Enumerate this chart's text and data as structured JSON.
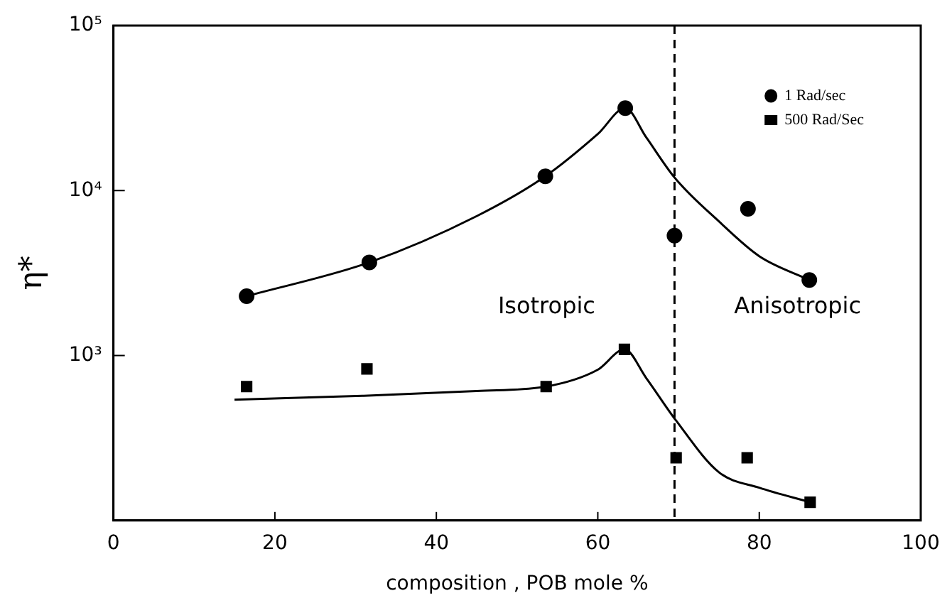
{
  "chart_data": {
    "type": "scatter",
    "xlabel": "composition , POB mole %",
    "ylabel": "η*",
    "log": "y",
    "grid": false,
    "legend": "top right",
    "marker": "circle",
    "xlim": [
      0,
      100
    ],
    "xticks": [
      0,
      20,
      40,
      60,
      80,
      100
    ],
    "ylim": [
      100,
      100000
    ],
    "yticks": [
      {
        "value": 100,
        "label": null
      },
      {
        "value": 1000,
        "label": "10³"
      },
      {
        "value": 10000,
        "label": "10⁴"
      },
      {
        "value": 100000,
        "label": "10⁵"
      }
    ],
    "ref_lines": [
      {
        "axis": "x",
        "value": 69.5,
        "line_style": "dashed",
        "color": "#000000"
      }
    ],
    "annotations": [
      "Isotropic",
      "Anisotropic"
    ],
    "series": [
      {
        "name": "1 Rad/sec",
        "type": "scatter",
        "color": "#000000",
        "x": [
          16.5,
          31.7,
          53.5,
          63.4,
          69.5,
          78.6,
          86.2
        ],
        "values": [
          2290,
          3670,
          12200,
          31600,
          5330,
          7750,
          2870
        ]
      },
      {
        "name": "500 Rad/Sec",
        "type": "scatter",
        "marker": "square",
        "color": "#000000",
        "x": [
          16.5,
          31.4,
          53.6,
          63.3,
          69.7,
          78.5,
          86.3
        ],
        "values": [
          648,
          830,
          648,
          1090,
          240,
          240,
          129
        ]
      },
      {
        "type": "line",
        "marker": "none",
        "line_style": "solid",
        "color": "#000000",
        "x": [
          16.5,
          31.7,
          45,
          53.5,
          60,
          63.4,
          66,
          69.5,
          75,
          80,
          86.2
        ],
        "values": [
          2290,
          3670,
          7000,
          12200,
          22000,
          31600,
          21000,
          12000,
          6500,
          4000,
          2870
        ]
      },
      {
        "type": "line",
        "marker": "none",
        "line_style": "solid",
        "color": "#000000",
        "x": [
          15,
          31,
          45,
          53.6,
          60,
          63.3,
          66,
          69.7,
          75,
          80,
          86.3
        ],
        "values": [
          540,
          570,
          610,
          648,
          820,
          1090,
          730,
          403,
          196,
          158,
          129
        ]
      }
    ]
  }
}
